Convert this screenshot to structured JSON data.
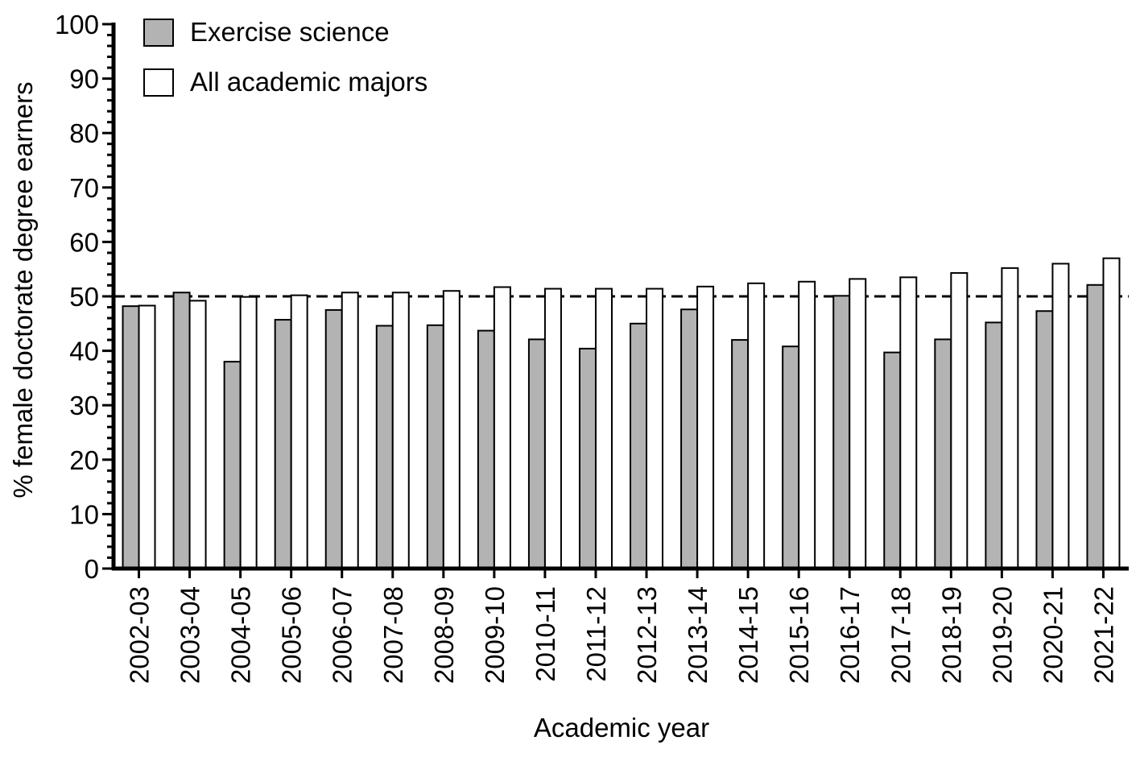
{
  "chart_data": {
    "type": "bar",
    "ylabel": "% female doctorate degree earners",
    "xlabel": "Academic year",
    "ylim": [
      0,
      100
    ],
    "yticks": [
      0,
      10,
      20,
      30,
      40,
      50,
      60,
      70,
      80,
      90,
      100
    ],
    "reference_line": {
      "y": 50,
      "style": "dashed"
    },
    "legend_position": "top-left",
    "categories": [
      "2002-03",
      "2003-04",
      "2004-05",
      "2005-06",
      "2006-07",
      "2007-08",
      "2008-09",
      "2009-10",
      "2010-11",
      "2011-12",
      "2012-13",
      "2013-14",
      "2014-15",
      "2015-16",
      "2016-17",
      "2017-18",
      "2018-19",
      "2019-20",
      "2020-21",
      "2021-22"
    ],
    "series": [
      {
        "name": "Exercise science",
        "color": "#b3b3b3",
        "values": [
          48.2,
          50.7,
          38.0,
          45.7,
          47.5,
          44.6,
          44.7,
          43.7,
          42.1,
          40.4,
          45.0,
          47.6,
          42.0,
          40.8,
          50.1,
          39.7,
          42.1,
          45.2,
          47.3,
          52.1
        ]
      },
      {
        "name": "All academic majors",
        "color": "#ffffff",
        "values": [
          48.3,
          49.2,
          49.9,
          50.2,
          50.7,
          50.7,
          51.0,
          51.7,
          51.4,
          51.4,
          51.4,
          51.8,
          52.4,
          52.7,
          53.2,
          53.5,
          54.3,
          55.2,
          56.0,
          57.0
        ]
      }
    ]
  }
}
